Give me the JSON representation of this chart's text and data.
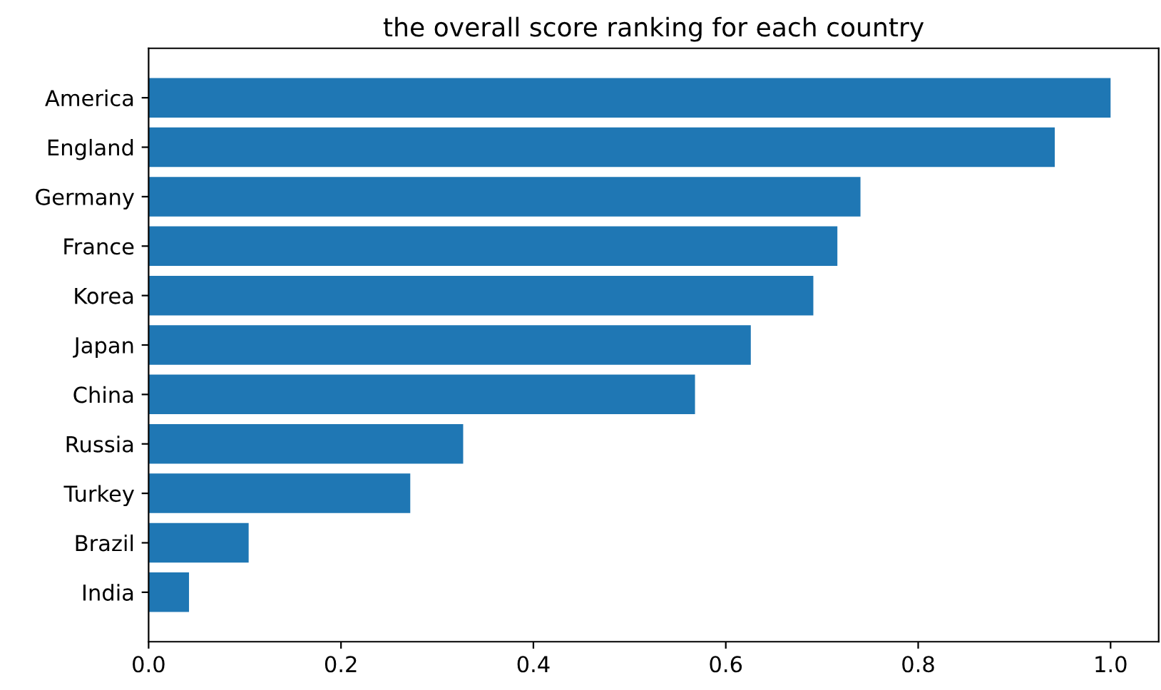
{
  "chart_data": {
    "type": "bar",
    "orientation": "horizontal",
    "title": "the overall score ranking for each country",
    "categories": [
      "America",
      "England",
      "Germany",
      "France",
      "Korea",
      "Japan",
      "China",
      "Russia",
      "Turkey",
      "Brazil",
      "India"
    ],
    "values": [
      1.0,
      0.942,
      0.74,
      0.716,
      0.691,
      0.626,
      0.568,
      0.327,
      0.272,
      0.104,
      0.042
    ],
    "color": "#1f77b4",
    "xlim": [
      0,
      1.05
    ],
    "xticks": [
      {
        "value": 0,
        "label": "0.0"
      },
      {
        "value": 0.2,
        "label": "0.2"
      },
      {
        "value": 0.4,
        "label": "0.4"
      },
      {
        "value": 0.6,
        "label": "0.6"
      },
      {
        "value": 0.8,
        "label": "0.8"
      },
      {
        "value": 1.0,
        "label": "1.0"
      }
    ],
    "grid": false,
    "legend": false
  }
}
